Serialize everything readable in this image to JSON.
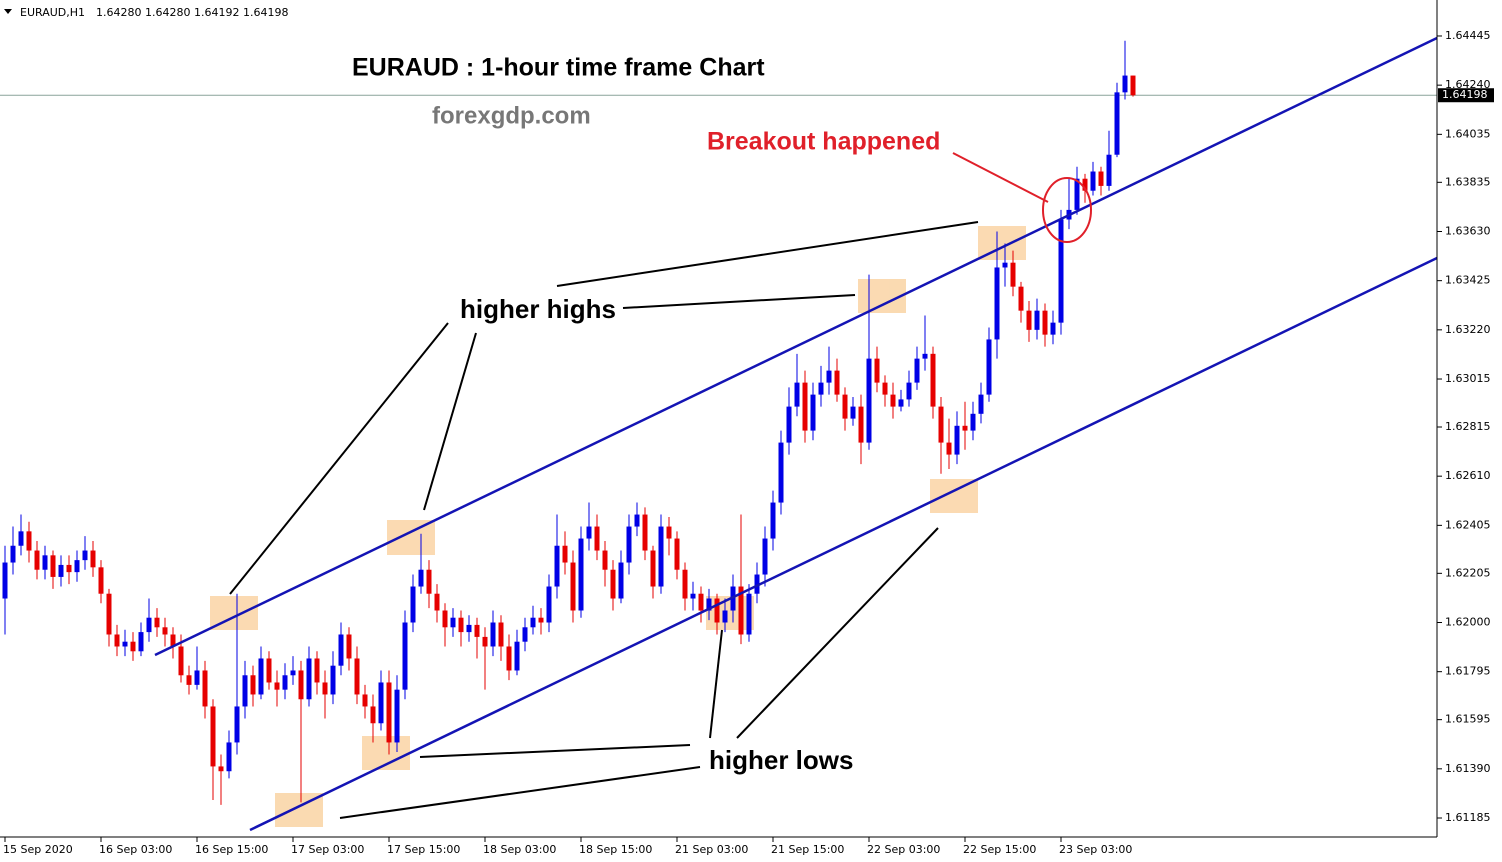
{
  "chart_data": {
    "type": "candlestick",
    "symbol": "EURAUD,H1",
    "info_values": [
      "1.64280",
      "1.64280",
      "1.64192",
      "1.64198"
    ],
    "title": "EURAUD : 1-hour time frame Chart",
    "watermark": "forexgdp.com",
    "breakout_label": "Breakout happened",
    "higher_highs_label": "higher highs",
    "higher_lows_label": "higher lows",
    "up_color": "#0000e6",
    "down_color": "#e60000",
    "ylim": [
      1.6111,
      1.64595
    ],
    "yticks": [
      {
        "value": 1.64445,
        "label": "1.64445"
      },
      {
        "value": 1.6424,
        "label": "1.64240"
      },
      {
        "value": 1.64035,
        "label": "1.64035"
      },
      {
        "value": 1.63835,
        "label": "1.63835"
      },
      {
        "value": 1.6363,
        "label": "1.63630"
      },
      {
        "value": 1.63425,
        "label": "1.63425"
      },
      {
        "value": 1.6322,
        "label": "1.63220"
      },
      {
        "value": 1.63015,
        "label": "1.63015"
      },
      {
        "value": 1.62815,
        "label": "1.62815"
      },
      {
        "value": 1.6261,
        "label": "1.62610"
      },
      {
        "value": 1.62405,
        "label": "1.62405"
      },
      {
        "value": 1.62205,
        "label": "1.62205"
      },
      {
        "value": 1.62,
        "label": "1.62000"
      },
      {
        "value": 1.61795,
        "label": "1.61795"
      },
      {
        "value": 1.61595,
        "label": "1.61595"
      },
      {
        "value": 1.6139,
        "label": "1.61390"
      },
      {
        "value": 1.61185,
        "label": "1.61185"
      }
    ],
    "categories": [
      "15 Sep 2020",
      null,
      null,
      null,
      null,
      null,
      null,
      null,
      null,
      null,
      null,
      null,
      "16 Sep 03:00",
      null,
      null,
      null,
      null,
      null,
      null,
      null,
      null,
      null,
      null,
      null,
      "16 Sep 15:00",
      null,
      null,
      null,
      null,
      null,
      null,
      null,
      null,
      null,
      null,
      null,
      "17 Sep 03:00",
      null,
      null,
      null,
      null,
      null,
      null,
      null,
      null,
      null,
      null,
      null,
      "17 Sep 15:00",
      null,
      null,
      null,
      null,
      null,
      null,
      null,
      null,
      null,
      null,
      null,
      "18 Sep 03:00",
      null,
      null,
      null,
      null,
      null,
      null,
      null,
      null,
      null,
      null,
      null,
      "18 Sep 15:00",
      null,
      null,
      null,
      null,
      null,
      null,
      null,
      null,
      null,
      null,
      null,
      "21 Sep 03:00",
      null,
      null,
      null,
      null,
      null,
      null,
      null,
      null,
      null,
      null,
      null,
      "21 Sep 15:00",
      null,
      null,
      null,
      null,
      null,
      null,
      null,
      null,
      null,
      null,
      null,
      "22 Sep 03:00",
      null,
      null,
      null,
      null,
      null,
      null,
      null,
      null,
      null,
      null,
      null,
      "22 Sep 15:00",
      null,
      null,
      null,
      null,
      null,
      null,
      null,
      null,
      null,
      null,
      null,
      "23 Sep 03:00",
      null,
      null,
      null,
      null,
      null,
      null,
      null,
      null,
      null
    ],
    "open": [
      1.621,
      1.6225,
      1.6232,
      1.6238,
      1.623,
      1.6222,
      1.6228,
      1.6219,
      1.6224,
      1.6221,
      1.6226,
      1.623,
      1.6223,
      1.6212,
      1.6195,
      1.619,
      1.6192,
      1.6188,
      1.6196,
      1.6202,
      1.6198,
      1.6195,
      1.619,
      1.6178,
      1.6174,
      1.618,
      1.6165,
      1.614,
      1.6138,
      1.615,
      1.6165,
      1.6178,
      1.617,
      1.6185,
      1.6175,
      1.6172,
      1.6178,
      1.618,
      1.6168,
      1.6185,
      1.6175,
      1.617,
      1.6182,
      1.6195,
      1.6185,
      1.617,
      1.6165,
      1.6158,
      1.6175,
      1.615,
      1.6172,
      1.62,
      1.6215,
      1.6222,
      1.6212,
      1.6205,
      1.6198,
      1.6202,
      1.6196,
      1.6199,
      1.6194,
      1.619,
      1.62,
      1.619,
      1.618,
      1.6192,
      1.6198,
      1.6202,
      1.62,
      1.6215,
      1.6232,
      1.6225,
      1.6205,
      1.6235,
      1.624,
      1.623,
      1.6222,
      1.621,
      1.6225,
      1.624,
      1.6245,
      1.623,
      1.6215,
      1.624,
      1.6235,
      1.6222,
      1.621,
      1.6212,
      1.6205,
      1.621,
      1.62,
      1.6205,
      1.6215,
      1.6195,
      1.6212,
      1.622,
      1.6235,
      1.625,
      1.6275,
      1.629,
      1.63,
      1.628,
      1.6295,
      1.63,
      1.6305,
      1.6295,
      1.6285,
      1.629,
      1.6275,
      1.631,
      1.63,
      1.6295,
      1.629,
      1.6293,
      1.63,
      1.631,
      1.6312,
      1.629,
      1.6275,
      1.627,
      1.6282,
      1.628,
      1.6287,
      1.6295,
      1.6318,
      1.6348,
      1.635,
      1.634,
      1.633,
      1.6322,
      1.633,
      1.632,
      1.6325,
      1.6368,
      1.6372,
      1.6385,
      1.638,
      1.6388,
      1.6382,
      1.6395,
      1.6421,
      1.6428
    ],
    "high": [
      1.6232,
      1.624,
      1.6245,
      1.6242,
      1.6234,
      1.6232,
      1.623,
      1.6228,
      1.6228,
      1.623,
      1.6236,
      1.6234,
      1.6226,
      1.6214,
      1.6199,
      1.6197,
      1.6196,
      1.62,
      1.621,
      1.6206,
      1.6202,
      1.6198,
      1.6195,
      1.6182,
      1.619,
      1.6184,
      1.6168,
      1.6145,
      1.6155,
      1.6212,
      1.6184,
      1.6182,
      1.619,
      1.6188,
      1.618,
      1.6183,
      1.6186,
      1.6184,
      1.619,
      1.6188,
      1.618,
      1.6188,
      1.62,
      1.6198,
      1.619,
      1.6174,
      1.617,
      1.618,
      1.618,
      1.6178,
      1.6205,
      1.622,
      1.6237,
      1.6226,
      1.6216,
      1.6208,
      1.6206,
      1.6205,
      1.6203,
      1.6202,
      1.6198,
      1.6205,
      1.6203,
      1.6195,
      1.6197,
      1.6202,
      1.6207,
      1.6206,
      1.622,
      1.6245,
      1.6238,
      1.623,
      1.624,
      1.625,
      1.6245,
      1.6234,
      1.6226,
      1.623,
      1.6245,
      1.625,
      1.6248,
      1.6232,
      1.6245,
      1.6244,
      1.6238,
      1.6225,
      1.6217,
      1.6215,
      1.6214,
      1.6212,
      1.621,
      1.622,
      1.6245,
      1.6216,
      1.6225,
      1.624,
      1.6255,
      1.628,
      1.6298,
      1.6312,
      1.6305,
      1.63,
      1.6307,
      1.6315,
      1.631,
      1.6298,
      1.6294,
      1.6295,
      1.6345,
      1.6315,
      1.6303,
      1.63,
      1.6297,
      1.6305,
      1.6315,
      1.6328,
      1.6315,
      1.6294,
      1.6285,
      1.6288,
      1.6292,
      1.6292,
      1.63,
      1.6323,
      1.6363,
      1.6358,
      1.6355,
      1.6342,
      1.6334,
      1.6335,
      1.6333,
      1.633,
      1.6372,
      1.6385,
      1.639,
      1.6387,
      1.6392,
      1.639,
      1.6405,
      1.6425,
      1.64425,
      1.6428
    ],
    "low": [
      1.6195,
      1.622,
      1.6228,
      1.6225,
      1.6218,
      1.6218,
      1.6214,
      1.6215,
      1.6216,
      1.6217,
      1.6222,
      1.6219,
      1.6208,
      1.619,
      1.6186,
      1.6186,
      1.6184,
      1.6186,
      1.6192,
      1.6194,
      1.619,
      1.6185,
      1.6175,
      1.617,
      1.6172,
      1.616,
      1.6126,
      1.6124,
      1.6135,
      1.6145,
      1.616,
      1.6165,
      1.6168,
      1.6172,
      1.6165,
      1.6168,
      1.6174,
      1.6125,
      1.6165,
      1.617,
      1.616,
      1.6166,
      1.6178,
      1.618,
      1.6166,
      1.616,
      1.615,
      1.6155,
      1.6145,
      1.6146,
      1.6168,
      1.6196,
      1.6212,
      1.6206,
      1.62,
      1.619,
      1.6194,
      1.619,
      1.6192,
      1.6185,
      1.6172,
      1.6186,
      1.6184,
      1.6176,
      1.6178,
      1.6188,
      1.6195,
      1.6195,
      1.6196,
      1.621,
      1.622,
      1.62,
      1.6202,
      1.623,
      1.6226,
      1.6215,
      1.6205,
      1.6208,
      1.622,
      1.6236,
      1.6226,
      1.621,
      1.6212,
      1.6228,
      1.6218,
      1.6205,
      1.6205,
      1.62,
      1.6201,
      1.6195,
      1.6196,
      1.62,
      1.6191,
      1.6192,
      1.6208,
      1.6215,
      1.623,
      1.6245,
      1.627,
      1.6286,
      1.6275,
      1.6276,
      1.629,
      1.6295,
      1.6292,
      1.628,
      1.6282,
      1.6266,
      1.6272,
      1.6296,
      1.629,
      1.6285,
      1.6288,
      1.629,
      1.6297,
      1.6305,
      1.6285,
      1.6262,
      1.6264,
      1.6266,
      1.6272,
      1.6276,
      1.6283,
      1.6292,
      1.631,
      1.634,
      1.6336,
      1.6325,
      1.6317,
      1.6318,
      1.6315,
      1.6316,
      1.632,
      1.6364,
      1.637,
      1.6375,
      1.6378,
      1.6378,
      1.638,
      1.6394,
      1.6418,
      1.64192
    ],
    "close": [
      1.6225,
      1.6232,
      1.6238,
      1.623,
      1.6222,
      1.6228,
      1.6219,
      1.6224,
      1.6221,
      1.6226,
      1.623,
      1.6223,
      1.6212,
      1.6195,
      1.619,
      1.6192,
      1.6188,
      1.6196,
      1.6202,
      1.6198,
      1.6195,
      1.619,
      1.6178,
      1.6174,
      1.618,
      1.6165,
      1.614,
      1.6138,
      1.615,
      1.6165,
      1.6178,
      1.617,
      1.6185,
      1.6175,
      1.6172,
      1.6178,
      1.618,
      1.6168,
      1.6185,
      1.6175,
      1.617,
      1.6182,
      1.6195,
      1.6185,
      1.617,
      1.6165,
      1.6158,
      1.6175,
      1.615,
      1.6172,
      1.62,
      1.6215,
      1.6222,
      1.6212,
      1.6205,
      1.6198,
      1.6202,
      1.6196,
      1.6199,
      1.6194,
      1.619,
      1.62,
      1.619,
      1.618,
      1.6192,
      1.6198,
      1.6202,
      1.62,
      1.6215,
      1.6232,
      1.6225,
      1.6205,
      1.6235,
      1.624,
      1.623,
      1.6222,
      1.621,
      1.6225,
      1.624,
      1.6245,
      1.623,
      1.6215,
      1.624,
      1.6235,
      1.6222,
      1.621,
      1.6212,
      1.6205,
      1.621,
      1.62,
      1.6205,
      1.6215,
      1.6195,
      1.6212,
      1.622,
      1.6235,
      1.625,
      1.6275,
      1.629,
      1.63,
      1.628,
      1.6295,
      1.63,
      1.6305,
      1.6295,
      1.6285,
      1.629,
      1.6275,
      1.631,
      1.63,
      1.6295,
      1.629,
      1.6293,
      1.63,
      1.631,
      1.6312,
      1.629,
      1.6275,
      1.627,
      1.6282,
      1.628,
      1.6287,
      1.6295,
      1.6318,
      1.6348,
      1.635,
      1.634,
      1.633,
      1.6322,
      1.633,
      1.632,
      1.6325,
      1.6368,
      1.6372,
      1.6385,
      1.638,
      1.6388,
      1.6382,
      1.6395,
      1.6421,
      1.6428,
      1.64198
    ]
  }
}
